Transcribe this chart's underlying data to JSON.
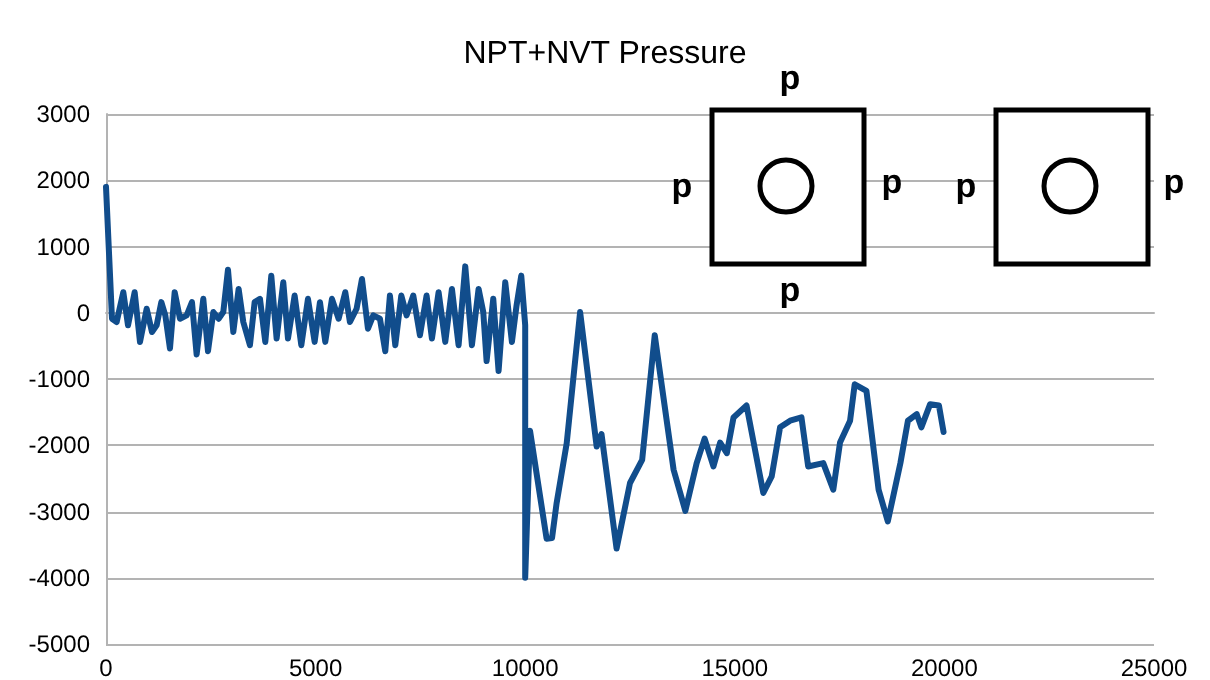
{
  "chart_data": {
    "type": "line",
    "title": "NPT+NVT Pressure",
    "x": [
      0,
      143,
      254,
      413,
      525,
      684,
      811,
      970,
      1097,
      1208,
      1320,
      1415,
      1526,
      1638,
      1765,
      1924,
      2051,
      2162,
      2321,
      2433,
      2560,
      2687,
      2798,
      2910,
      3037,
      3164,
      3275,
      3434,
      3546,
      3673,
      3800,
      3943,
      4070,
      4229,
      4341,
      4500,
      4659,
      4818,
      4977,
      5104,
      5231,
      5390,
      5549,
      5708,
      5819,
      5978,
      6106,
      6249,
      6376,
      6535,
      6662,
      6773,
      6901,
      7044,
      7171,
      7330,
      7489,
      7648,
      7775,
      7934,
      8093,
      8252,
      8411,
      8570,
      8729,
      8888,
      9000,
      9079,
      9238,
      9365,
      9524,
      9683,
      9794,
      9906,
      10000,
      10000,
      10115,
      10510,
      10640,
      10750,
      10990,
      11310,
      11705,
      11820,
      12180,
      12500,
      12790,
      13090,
      13540,
      13820,
      14090,
      14280,
      14490,
      14650,
      14810,
      14970,
      15280,
      15680,
      15880,
      16080,
      16320,
      16590,
      16750,
      17110,
      17350,
      17510,
      17750,
      17860,
      18140,
      18430,
      18650,
      18950,
      19130,
      19340,
      19450,
      19660,
      19870,
      19980
    ],
    "series": [
      {
        "color": "#114d8c",
        "values": [
          1900,
          -90,
          -140,
          310,
          -190,
          310,
          -440,
          60,
          -290,
          -190,
          160,
          -40,
          -540,
          310,
          -90,
          -40,
          160,
          -630,
          210,
          -580,
          10,
          -90,
          10,
          650,
          -290,
          360,
          -140,
          -490,
          160,
          210,
          -440,
          560,
          -390,
          460,
          -390,
          260,
          -490,
          210,
          -440,
          160,
          -440,
          210,
          -90,
          310,
          -140,
          60,
          510,
          -240,
          -40,
          -90,
          -580,
          260,
          -490,
          260,
          -40,
          260,
          -340,
          260,
          -390,
          310,
          -440,
          360,
          -490,
          700,
          -490,
          360,
          10,
          -730,
          210,
          -880,
          460,
          -440,
          110,
          560,
          -190,
          -4000,
          -1780,
          -3410,
          -3400,
          -2870,
          -1970,
          10,
          -2020,
          -1830,
          -3560,
          -2570,
          -2220,
          -340,
          -2370,
          -2990,
          -2270,
          -1900,
          -2320,
          -1960,
          -2120,
          -1580,
          -1400,
          -2720,
          -2470,
          -1730,
          -1630,
          -1580,
          -2320,
          -2270,
          -2670,
          -1960,
          -1630,
          -1080,
          -1180,
          -2670,
          -3150,
          -2270,
          -1630,
          -1530,
          -1730,
          -1380,
          -1400,
          -1800
        ]
      }
    ],
    "xlim": [
      0,
      25000
    ],
    "xticks": [
      0,
      5000,
      10000,
      15000,
      20000,
      25000
    ],
    "ylim": [
      -5000,
      3000
    ],
    "yticks": [
      -5000,
      -4000,
      -3000,
      -2000,
      -1000,
      0,
      1000,
      2000,
      3000
    ],
    "grid": "y",
    "marker": "none",
    "line_style": "solid",
    "annotations": [
      "p",
      "p",
      "p",
      "p",
      "p",
      "p"
    ]
  }
}
